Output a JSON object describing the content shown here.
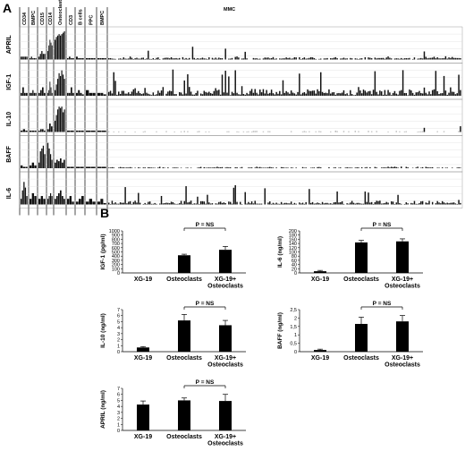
{
  "panels": {
    "a": "A",
    "b": "B"
  },
  "chart_data": [
    {
      "type": "bar",
      "panel": "A",
      "columns": [
        "CD34",
        "BMPC",
        "CD15",
        "CD14",
        "Osteoclasts",
        "CD3",
        "B cells",
        "PPC",
        "BMPC",
        "MMC"
      ],
      "rows": [
        {
          "name": "APRIL",
          "segments": [
            [
              0.1,
              0.1,
              0.1,
              0.1,
              0.1
            ],
            [
              0.05,
              0.1,
              0.05,
              0.05,
              0.05
            ],
            [
              0.1,
              0.2,
              0.3,
              0.2,
              0.2
            ],
            [
              0.3,
              0.5,
              0.7,
              0.6,
              0.5
            ],
            [
              0.7,
              0.8,
              0.85,
              0.9,
              0.85,
              0.9,
              0.95,
              1.0
            ],
            [
              0.05,
              0.1,
              0.05,
              0.05
            ],
            [
              0.1,
              0.05,
              0.05,
              0.05
            ],
            [
              0.05,
              0.05,
              0.05,
              0.05
            ],
            [
              0.05,
              0.05,
              0.05,
              0.05
            ],
            []
          ]
        },
        {
          "name": "IGF-1",
          "segments": [
            [
              0.1,
              0.3,
              0.1,
              0.1
            ],
            [
              0.1,
              0.1,
              0.2,
              0.1,
              0.1
            ],
            [
              0.1,
              0.2,
              0.3,
              0.1
            ],
            [
              0.1,
              0.2,
              0.5,
              0.3,
              0.1
            ],
            [
              0.2,
              0.4,
              0.6,
              0.8,
              0.7,
              0.9,
              0.75,
              0.6
            ],
            [
              0.1,
              0.1,
              0.3,
              0.1
            ],
            [
              0.1,
              0.2,
              0.1,
              0.05
            ],
            [
              0.2,
              0.1,
              0.1
            ],
            [
              0.1,
              0.1,
              0.05
            ],
            []
          ]
        },
        {
          "name": "IL-10",
          "segments": [
            [
              0.05,
              0.1,
              0.05
            ],
            [
              0.05,
              0.05,
              0.05
            ],
            [
              0.05,
              0.1,
              0.1,
              0.05
            ],
            [
              0.1,
              0.3,
              0.2
            ],
            [
              0.4,
              0.6,
              0.8,
              0.9,
              0.85,
              0.9,
              0.7,
              0.8
            ],
            [
              0.05,
              0.05
            ],
            [
              0.05,
              0.05,
              0.05
            ],
            [
              0.05,
              0.05
            ],
            [
              0.05,
              0.05
            ],
            []
          ]
        },
        {
          "name": "BAFF",
          "segments": [
            [
              0.1,
              0.05,
              0.05
            ],
            [
              0.1,
              0.2,
              0.1
            ],
            [
              0.2,
              0.6,
              0.7,
              0.8,
              0.5
            ],
            [
              0.9,
              0.7,
              0.5,
              0.3
            ],
            [
              0.2,
              0.3,
              0.25,
              0.35,
              0.2,
              0.3
            ],
            [
              0.05,
              0.05
            ],
            [
              0.05,
              0.05
            ],
            [
              0.05,
              0.05
            ],
            [
              0.05,
              0.05
            ],
            []
          ]
        },
        {
          "name": "IL-6",
          "segments": [
            [
              0.2,
              0.5,
              0.8,
              0.6,
              0.3
            ],
            [
              0.2,
              0.4,
              0.3
            ],
            [
              0.2,
              0.3,
              0.2
            ],
            [
              0.2,
              0.3,
              0.4,
              0.3
            ],
            [
              0.2,
              0.3,
              0.4,
              0.5,
              0.3,
              0.2
            ],
            [
              0.2,
              0.3,
              0.1
            ],
            [
              0.1,
              0.2,
              0.3
            ],
            [
              0.1,
              0.2,
              0.1
            ],
            [
              0.1,
              0.2,
              0.05
            ],
            []
          ]
        }
      ]
    },
    {
      "type": "bar",
      "panel": "B",
      "categories": [
        "XG-19",
        "Osteoclasts",
        "XG-19+\nOsteoclasts"
      ],
      "values": [
        0,
        420,
        550
      ],
      "errors": [
        0,
        25,
        80
      ],
      "ylabel": "IGF-1 (pg/ml)",
      "ylim": [
        0,
        1000
      ],
      "yticks": [
        "0",
        "100",
        "200",
        "300",
        "400",
        "500",
        "600",
        "700",
        "800",
        "900",
        "1000"
      ],
      "significance": "P = NS"
    },
    {
      "type": "bar",
      "panel": "B",
      "categories": [
        "XG-19",
        "Osteoclasts",
        "XG-19+\nOsteoclasts"
      ],
      "values": [
        8,
        145,
        150
      ],
      "errors": [
        4,
        10,
        12
      ],
      "ylabel": "IL-6 (ng/ml)",
      "ylim": [
        0,
        200
      ],
      "yticks": [
        "0",
        "20",
        "40",
        "60",
        "80",
        "100",
        "120",
        "140",
        "160",
        "180",
        "200"
      ],
      "significance": "P = NS"
    },
    {
      "type": "bar",
      "panel": "B",
      "categories": [
        "XG-19",
        "Osteoclasts",
        "XG-19+\nOsteoclasts"
      ],
      "values": [
        0.7,
        5.2,
        4.4
      ],
      "errors": [
        0.15,
        1.0,
        0.8
      ],
      "ylabel": "IL-10 (ng/ml)",
      "ylim": [
        0,
        7
      ],
      "yticks": [
        "0",
        "1",
        "2",
        "3",
        "4",
        "5",
        "6",
        "7"
      ],
      "significance": "P = NS"
    },
    {
      "type": "bar",
      "panel": "B",
      "categories": [
        "XG-19",
        "Osteoclasts",
        "XG-19+\nOsteoclasts"
      ],
      "values": [
        0.1,
        1.65,
        1.8
      ],
      "errors": [
        0.05,
        0.4,
        0.35
      ],
      "ylabel": "BAFF (ng/ml)",
      "ylim": [
        0,
        2.5
      ],
      "yticks": [
        "0",
        "0,5",
        "1",
        "1,5",
        "2",
        "2,5"
      ],
      "significance": "P = NS"
    },
    {
      "type": "bar",
      "panel": "B",
      "categories": [
        "XG-19",
        "Osteoclasts",
        "XG-19+\nOsteoclasts"
      ],
      "values": [
        4.3,
        5.0,
        4.9
      ],
      "errors": [
        0.6,
        0.4,
        1.1
      ],
      "ylabel": "APRIL (ng/ml)",
      "ylim": [
        0,
        7
      ],
      "yticks": [
        "0",
        "1",
        "2",
        "3",
        "4",
        "5",
        "6",
        "7"
      ],
      "significance": "P = NS"
    }
  ]
}
